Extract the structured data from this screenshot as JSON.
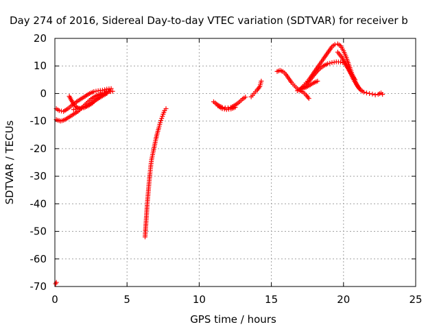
{
  "chart_data": {
    "type": "scatter",
    "title": "Day 274 of 2016, Sidereal Day-to-day VTEC variation (SDTVAR) for receiver b",
    "xlabel": "GPS time / hours",
    "ylabel": "SDTVAR / TECUs",
    "xlim": [
      0,
      25
    ],
    "ylim": [
      -70,
      20
    ],
    "xticks": [
      0,
      5,
      10,
      15,
      20,
      25
    ],
    "yticks": [
      -70,
      -60,
      -50,
      -40,
      -30,
      -20,
      -10,
      0,
      10,
      20
    ],
    "grid": true,
    "marker": "+",
    "color": "#ff0000",
    "series": [
      {
        "segments": [
          [
            [
              0.05,
              -69
            ],
            [
              0.1,
              -68.5
            ]
          ],
          [
            [
              0.1,
              -5.5
            ],
            [
              0.3,
              -6.2
            ],
            [
              0.6,
              -6.5
            ],
            [
              0.9,
              -5.5
            ],
            [
              1.2,
              -4.2
            ],
            [
              1.5,
              -3
            ],
            [
              1.8,
              -2
            ],
            [
              2.1,
              -1
            ],
            [
              2.4,
              0
            ],
            [
              2.7,
              0.7
            ],
            [
              3.0,
              1
            ],
            [
              3.3,
              1.2
            ],
            [
              3.6,
              1.6
            ],
            [
              3.9,
              1.8
            ]
          ],
          [
            [
              0.1,
              -9.5
            ],
            [
              0.4,
              -10
            ],
            [
              0.7,
              -9.5
            ],
            [
              1.0,
              -8.5
            ],
            [
              1.3,
              -7.5
            ],
            [
              1.6,
              -6.5
            ],
            [
              1.9,
              -5
            ],
            [
              2.2,
              -3.5
            ],
            [
              2.5,
              -2
            ],
            [
              2.8,
              -1
            ],
            [
              3.1,
              -0.3
            ],
            [
              3.4,
              0.2
            ],
            [
              3.7,
              0.6
            ],
            [
              4.0,
              0.8
            ]
          ],
          [
            [
              1.0,
              -1
            ],
            [
              1.2,
              -3
            ],
            [
              1.4,
              -4.5
            ],
            [
              1.7,
              -5.5
            ],
            [
              2.0,
              -5.2
            ],
            [
              2.3,
              -4.5
            ],
            [
              2.6,
              -3.5
            ],
            [
              2.9,
              -2
            ],
            [
              3.2,
              -0.8
            ],
            [
              3.5,
              0.2
            ],
            [
              3.8,
              0.8
            ]
          ],
          [
            [
              1.3,
              -5.8
            ],
            [
              1.6,
              -5.5
            ],
            [
              2.0,
              -5
            ],
            [
              2.4,
              -4
            ],
            [
              2.8,
              -2.5
            ],
            [
              3.2,
              -1.2
            ],
            [
              3.6,
              0
            ]
          ],
          [
            [
              6.25,
              -52
            ],
            [
              6.3,
              -48
            ],
            [
              6.35,
              -44
            ],
            [
              6.4,
              -40
            ],
            [
              6.45,
              -37
            ],
            [
              6.5,
              -34
            ],
            [
              6.55,
              -31
            ],
            [
              6.6,
              -28.5
            ],
            [
              6.65,
              -26
            ],
            [
              6.7,
              -24
            ],
            [
              6.8,
              -21.5
            ],
            [
              6.9,
              -19
            ],
            [
              7.0,
              -16.5
            ],
            [
              7.1,
              -14.3
            ],
            [
              7.2,
              -12.5
            ],
            [
              7.3,
              -10.5
            ],
            [
              7.4,
              -9
            ],
            [
              7.5,
              -7.5
            ],
            [
              7.6,
              -6.2
            ],
            [
              7.7,
              -5.5
            ]
          ],
          [
            [
              11.0,
              -3
            ],
            [
              11.2,
              -3.8
            ],
            [
              11.4,
              -4.5
            ],
            [
              11.6,
              -5
            ],
            [
              11.8,
              -5.2
            ],
            [
              12.0,
              -5.2
            ],
            [
              12.2,
              -5
            ],
            [
              12.4,
              -4.5
            ],
            [
              12.6,
              -3.8
            ],
            [
              12.8,
              -3
            ],
            [
              13.0,
              -2
            ],
            [
              13.2,
              -1.3
            ]
          ],
          [
            [
              11.3,
              -4.5
            ],
            [
              11.6,
              -5.5
            ],
            [
              11.9,
              -5.8
            ],
            [
              12.2,
              -5.6
            ],
            [
              12.5,
              -5
            ]
          ],
          [
            [
              13.6,
              -1.2
            ],
            [
              13.8,
              0
            ],
            [
              14.0,
              1.2
            ],
            [
              14.2,
              2.5
            ],
            [
              14.3,
              4.5
            ]
          ],
          [
            [
              15.4,
              8
            ],
            [
              15.6,
              8.4
            ],
            [
              15.8,
              8
            ],
            [
              16.0,
              7
            ],
            [
              16.2,
              5.5
            ],
            [
              16.4,
              4
            ],
            [
              16.6,
              2.8
            ],
            [
              16.8,
              1.8
            ],
            [
              17.0,
              1
            ],
            [
              17.2,
              0.5
            ],
            [
              17.4,
              -0.5
            ],
            [
              17.6,
              -1.8
            ]
          ],
          [
            [
              16.8,
              1
            ],
            [
              17.0,
              1.6
            ],
            [
              17.2,
              2.6
            ],
            [
              17.4,
              3.8
            ],
            [
              17.6,
              5
            ],
            [
              17.8,
              6.5
            ],
            [
              18.0,
              8
            ],
            [
              18.2,
              9.5
            ],
            [
              18.4,
              11
            ],
            [
              18.6,
              12.5
            ],
            [
              18.8,
              14
            ],
            [
              19.0,
              15.5
            ],
            [
              19.2,
              17
            ],
            [
              19.4,
              17.8
            ],
            [
              19.6,
              18
            ],
            [
              19.8,
              17.3
            ],
            [
              20.0,
              15.5
            ],
            [
              20.2,
              13
            ],
            [
              20.4,
              10
            ],
            [
              20.6,
              7
            ],
            [
              20.8,
              4.5
            ],
            [
              21.0,
              2.5
            ],
            [
              21.2,
              1.2
            ],
            [
              21.4,
              0.5
            ],
            [
              21.6,
              0.2
            ],
            [
              21.8,
              0
            ],
            [
              22.0,
              -0.2
            ],
            [
              22.2,
              -0.5
            ]
          ],
          [
            [
              17.1,
              2
            ],
            [
              17.4,
              3.2
            ],
            [
              17.7,
              5
            ],
            [
              18.0,
              7
            ],
            [
              18.3,
              8.8
            ],
            [
              18.6,
              10
            ],
            [
              18.9,
              10.8
            ],
            [
              19.2,
              11.2
            ],
            [
              19.5,
              11.5
            ],
            [
              19.8,
              11.4
            ],
            [
              20.1,
              11
            ],
            [
              20.3,
              9.5
            ],
            [
              20.5,
              7.2
            ],
            [
              20.7,
              5
            ],
            [
              20.9,
              3.3
            ],
            [
              21.1,
              1.7
            ]
          ],
          [
            [
              17.0,
              1.5
            ],
            [
              17.3,
              2
            ],
            [
              17.6,
              2.8
            ],
            [
              17.9,
              3.8
            ],
            [
              18.2,
              4.5
            ]
          ],
          [
            [
              19.6,
              15
            ],
            [
              19.9,
              13
            ],
            [
              20.2,
              10
            ],
            [
              20.5,
              7.5
            ],
            [
              20.8,
              5
            ]
          ],
          [
            [
              22.4,
              -0.3
            ],
            [
              22.6,
              0.2
            ],
            [
              22.7,
              -0.3
            ]
          ]
        ]
      }
    ]
  }
}
